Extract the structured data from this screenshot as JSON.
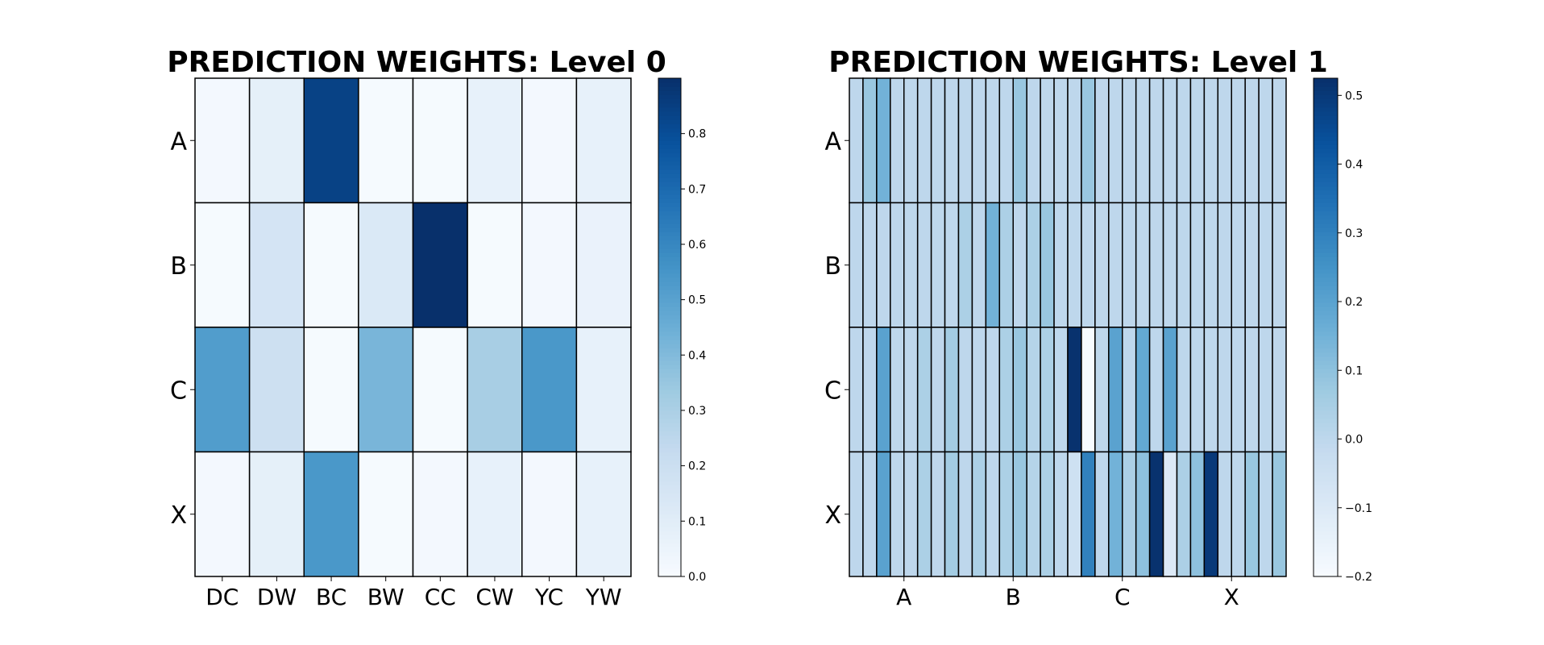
{
  "chart_data": [
    {
      "type": "heatmap",
      "title": "PREDICTION WEIGHTS: Level 0",
      "rows": [
        "A",
        "B",
        "C",
        "X"
      ],
      "columns": [
        "DC",
        "DW",
        "BC",
        "BW",
        "CC",
        "CW",
        "YC",
        "YW"
      ],
      "values": [
        [
          0.02,
          0.08,
          0.84,
          0.01,
          0.01,
          0.07,
          0.02,
          0.07
        ],
        [
          0.01,
          0.16,
          0.01,
          0.13,
          0.9,
          0.01,
          0.02,
          0.06
        ],
        [
          0.52,
          0.19,
          0.01,
          0.42,
          0.01,
          0.31,
          0.54,
          0.07
        ],
        [
          0.02,
          0.08,
          0.54,
          0.01,
          0.02,
          0.07,
          0.02,
          0.07
        ]
      ],
      "colorbar": {
        "min": 0.0,
        "max": 0.9,
        "ticks": [
          "0.0",
          "0.1",
          "0.2",
          "0.3",
          "0.4",
          "0.5",
          "0.6",
          "0.7",
          "0.8"
        ]
      },
      "colormap": "Blues"
    },
    {
      "type": "heatmap",
      "title": "PREDICTION WEIGHTS: Level 1",
      "rows": [
        "A",
        "B",
        "C",
        "X"
      ],
      "column_groups": [
        "A",
        "B",
        "C",
        "X"
      ],
      "columns_per_group": 8,
      "values": [
        [
          0.0,
          0.08,
          0.15,
          0.0,
          0.0,
          0.0,
          0.0,
          0.0,
          0.0,
          0.0,
          0.0,
          0.0,
          0.08,
          0.0,
          0.0,
          0.0,
          0.0,
          0.08,
          0.0,
          0.0,
          0.0,
          0.0,
          0.0,
          0.0,
          0.0,
          0.0,
          0.0,
          0.0,
          0.0,
          0.0,
          0.0,
          0.0
        ],
        [
          0.0,
          0.0,
          0.0,
          0.0,
          0.0,
          0.0,
          0.0,
          0.0,
          0.04,
          0.0,
          0.15,
          0.04,
          0.0,
          0.04,
          0.08,
          0.0,
          0.0,
          0.0,
          0.0,
          0.0,
          0.0,
          0.0,
          0.0,
          0.0,
          0.0,
          0.0,
          0.0,
          0.0,
          0.0,
          0.0,
          0.0,
          0.0
        ],
        [
          0.0,
          0.0,
          0.2,
          0.0,
          0.0,
          0.04,
          0.0,
          0.06,
          0.0,
          0.0,
          0.0,
          0.04,
          0.08,
          0.02,
          0.04,
          0.0,
          0.52,
          -0.2,
          0.0,
          0.2,
          0.0,
          0.18,
          0.0,
          0.2,
          0.0,
          0.0,
          0.0,
          0.0,
          0.0,
          0.0,
          0.0,
          0.0
        ],
        [
          0.0,
          0.0,
          0.2,
          0.0,
          0.0,
          0.04,
          0.0,
          0.06,
          0.0,
          0.04,
          0.0,
          0.04,
          0.08,
          0.02,
          0.04,
          0.0,
          -0.05,
          0.3,
          0.0,
          0.15,
          0.04,
          0.1,
          0.52,
          -0.1,
          0.04,
          0.1,
          0.5,
          0.0,
          0.0,
          0.08,
          0.0,
          0.08
        ]
      ],
      "colorbar": {
        "min": -0.2,
        "max": 0.525,
        "ticks": [
          "−0.2",
          "−0.1",
          "0.0",
          "0.1",
          "0.2",
          "0.3",
          "0.4",
          "0.5"
        ]
      },
      "colormap": "Blues"
    }
  ]
}
